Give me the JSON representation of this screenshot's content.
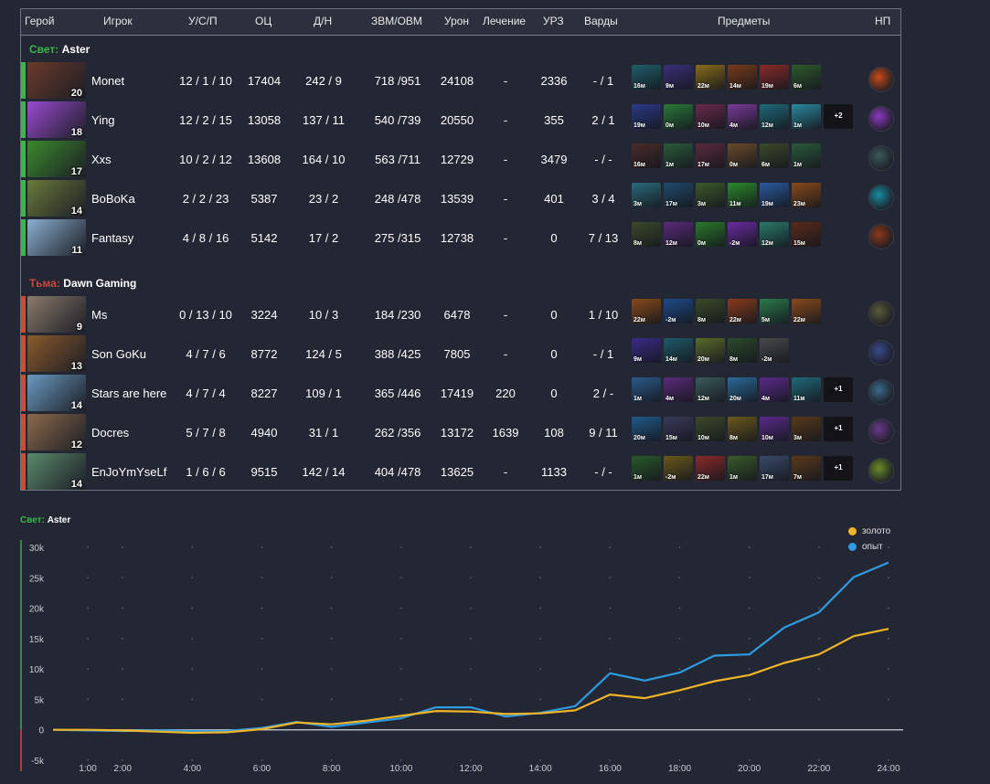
{
  "headers": {
    "hero": "Герой",
    "player": "Игрок",
    "kda": "У/С/П",
    "nw": "ОЦ",
    "lhdn": "Д/Н",
    "gpmxpm": "ЗВМ/ОВМ",
    "damage": "Урон",
    "heal": "Лечение",
    "building": "УРЗ",
    "wards": "Варды",
    "items": "Предметы",
    "np": "НП"
  },
  "radiant": {
    "side": "Свет:",
    "name": "Aster",
    "color": "#3db44d",
    "players": [
      {
        "level": "20",
        "player": "Monet",
        "kda": "12 / 1 / 10",
        "nw": "17404",
        "lhdn": "242 / 9",
        "gpmxpm": "718 /951",
        "damage": "24108",
        "heal": "-",
        "building": "2336",
        "wards": "- / 1",
        "items": [
          {
            "t": "16м",
            "c": "#1f5f6a"
          },
          {
            "t": "9м",
            "c": "#3a2f7a"
          },
          {
            "t": "22м",
            "c": "#8a6a1c"
          },
          {
            "t": "14м",
            "c": "#7a3a18"
          },
          {
            "t": "19м",
            "c": "#8a2a2a"
          },
          {
            "t": "6м",
            "c": "#2d5a2d"
          }
        ],
        "more": "",
        "hero_color": "#6a3a2a",
        "np_color": "#c84a1a"
      },
      {
        "level": "18",
        "player": "Ying",
        "kda": "12 / 2 / 15",
        "nw": "13058",
        "lhdn": "137 / 11",
        "gpmxpm": "540 /739",
        "damage": "20550",
        "heal": "-",
        "building": "355",
        "wards": "2 / 1",
        "items": [
          {
            "t": "19м",
            "c": "#2a3a8a"
          },
          {
            "t": "0м",
            "c": "#2a7a3a"
          },
          {
            "t": "10м",
            "c": "#6a2a4a"
          },
          {
            "t": "4м",
            "c": "#7a3a9a"
          },
          {
            "t": "12м",
            "c": "#1f6a7a"
          },
          {
            "t": "1м",
            "c": "#2a8aa0"
          }
        ],
        "more": "+2",
        "hero_color": "#9a4ad0",
        "np_color": "#8a3ac0"
      },
      {
        "level": "17",
        "player": "Xxs",
        "kda": "10 / 2 / 12",
        "nw": "13608",
        "lhdn": "164 / 10",
        "gpmxpm": "563 /711",
        "damage": "12729",
        "heal": "-",
        "building": "3479",
        "wards": "- / -",
        "items": [
          {
            "t": "16м",
            "c": "#4a2a2a"
          },
          {
            "t": "1м",
            "c": "#2a5a3a"
          },
          {
            "t": "17м",
            "c": "#5a2a3a"
          },
          {
            "t": "0м",
            "c": "#6a4a2a"
          },
          {
            "t": "6м",
            "c": "#3a4a2a"
          },
          {
            "t": "1м",
            "c": "#2a5a3a"
          }
        ],
        "more": "",
        "hero_color": "#3a8a2a",
        "np_color": "#3a5a5a"
      },
      {
        "level": "14",
        "player": "BoBoKa",
        "kda": "2 / 2 / 23",
        "nw": "5387",
        "lhdn": "23 / 2",
        "gpmxpm": "248 /478",
        "damage": "13539",
        "heal": "-",
        "building": "401",
        "wards": "3 / 4",
        "items": [
          {
            "t": "3м",
            "c": "#2a6a7a"
          },
          {
            "t": "17м",
            "c": "#1f4a6a"
          },
          {
            "t": "3м",
            "c": "#3a5a2a"
          },
          {
            "t": "11м",
            "c": "#2a8a2a"
          },
          {
            "t": "19м",
            "c": "#2a5aa0"
          },
          {
            "t": "23м",
            "c": "#8a4a1a"
          }
        ],
        "more": "",
        "hero_color": "#6a7a3a",
        "np_color": "#1a8aa0"
      },
      {
        "level": "11",
        "player": "Fantasy",
        "kda": "4 / 8 / 16",
        "nw": "5142",
        "lhdn": "17 / 2",
        "gpmxpm": "275 /315",
        "damage": "12738",
        "heal": "-",
        "building": "0",
        "wards": "7 / 13",
        "items": [
          {
            "t": "8м",
            "c": "#3a4a2a"
          },
          {
            "t": "12м",
            "c": "#5a2a7a"
          },
          {
            "t": "0м",
            "c": "#2a7a2a"
          },
          {
            "t": "-2м",
            "c": "#6a2aa0"
          },
          {
            "t": "12м",
            "c": "#2a7a6a"
          },
          {
            "t": "15м",
            "c": "#5a2a1a"
          }
        ],
        "more": "",
        "hero_color": "#8ab0d0",
        "np_color": "#8a3a1a"
      }
    ]
  },
  "dire": {
    "side": "Тьма:",
    "name": "Dawn Gaming",
    "color": "#cc4c3a",
    "players": [
      {
        "level": "9",
        "player": "Ms",
        "kda": "0 / 13 / 10",
        "nw": "3224",
        "lhdn": "10 / 3",
        "gpmxpm": "184 /230",
        "damage": "6478",
        "heal": "-",
        "building": "0",
        "wards": "1 / 10",
        "items": [
          {
            "t": "22м",
            "c": "#8a4a1a"
          },
          {
            "t": "-2м",
            "c": "#1f4a8a"
          },
          {
            "t": "8м",
            "c": "#3a4a2a"
          },
          {
            "t": "22м",
            "c": "#8a3a1a"
          },
          {
            "t": "5м",
            "c": "#2a7a4a"
          },
          {
            "t": "22м",
            "c": "#8a4a1a"
          }
        ],
        "more": "",
        "hero_color": "#8a7a6a",
        "np_color": "#5a5a3a"
      },
      {
        "level": "13",
        "player": "Son GoKu",
        "kda": "4 / 7 / 6",
        "nw": "8772",
        "lhdn": "124 / 5",
        "gpmxpm": "388 /425",
        "damage": "7805",
        "heal": "-",
        "building": "0",
        "wards": "- / 1",
        "items": [
          {
            "t": "9м",
            "c": "#3a2a8a"
          },
          {
            "t": "14м",
            "c": "#1f5a6a"
          },
          {
            "t": "20м",
            "c": "#5a6a2a"
          },
          {
            "t": "8м",
            "c": "#2a4a2a"
          },
          {
            "t": "-2м",
            "c": "#4a4a4a"
          }
        ],
        "more": "",
        "hero_color": "#8a5a2a",
        "np_color": "#3a4a8a"
      },
      {
        "level": "14",
        "player": "Stars are here",
        "kda": "4 / 7 / 4",
        "nw": "8227",
        "lhdn": "109 / 1",
        "gpmxpm": "365 /446",
        "damage": "17419",
        "heal": "220",
        "building": "0",
        "wards": "2 / -",
        "items": [
          {
            "t": "1м",
            "c": "#2a5a8a"
          },
          {
            "t": "4м",
            "c": "#5a2a7a"
          },
          {
            "t": "12м",
            "c": "#3a5a5a"
          },
          {
            "t": "20м",
            "c": "#2a6a9a"
          },
          {
            "t": "4м",
            "c": "#5a2a8a"
          },
          {
            "t": "11м",
            "c": "#1f6a7a"
          }
        ],
        "more": "+1",
        "hero_color": "#6a9ac0",
        "np_color": "#3a6a8a"
      },
      {
        "level": "12",
        "player": "Docres",
        "kda": "5 / 7 / 8",
        "nw": "4940",
        "lhdn": "31 / 1",
        "gpmxpm": "262 /356",
        "damage": "13172",
        "heal": "1639",
        "building": "108",
        "wards": "9 / 11",
        "items": [
          {
            "t": "20м",
            "c": "#1f5a8a"
          },
          {
            "t": "15м",
            "c": "#3a3a5a"
          },
          {
            "t": "10м",
            "c": "#3a4a2a"
          },
          {
            "t": "8м",
            "c": "#6a5a1a"
          },
          {
            "t": "10м",
            "c": "#5a2a8a"
          },
          {
            "t": "3м",
            "c": "#5a3a1a"
          }
        ],
        "more": "+1",
        "hero_color": "#8a6a4a",
        "np_color": "#6a3a8a"
      },
      {
        "level": "14",
        "player": "EnJoYmYseLf",
        "kda": "1 / 6 / 6",
        "nw": "9515",
        "lhdn": "142 / 14",
        "gpmxpm": "404 /478",
        "damage": "13625",
        "heal": "-",
        "building": "1133",
        "wards": "- / -",
        "items": [
          {
            "t": "1м",
            "c": "#2a5a2a"
          },
          {
            "t": "-2м",
            "c": "#6a5a1a"
          },
          {
            "t": "22м",
            "c": "#8a2a2a"
          },
          {
            "t": "1м",
            "c": "#3a5a2a"
          },
          {
            "t": "17м",
            "c": "#3a4a6a"
          },
          {
            "t": "7м",
            "c": "#5a3a1a"
          }
        ],
        "more": "+1",
        "hero_color": "#5a8a6a",
        "np_color": "#6a8a2a"
      }
    ]
  },
  "graph": {
    "title_side": "Свет:",
    "title_team": "Aster",
    "legend_gold": "золото",
    "legend_xp": "опыт",
    "gold_color": "#f0b429",
    "xp_color": "#2f9be0"
  },
  "chart_data": {
    "type": "line",
    "title": "",
    "ylim": [
      -5000,
      30000
    ],
    "xlim": [
      0,
      24
    ],
    "yticks": [
      "30k",
      "25k",
      "20k",
      "15k",
      "10k",
      "5k",
      "0",
      "-5k"
    ],
    "ytick_values": [
      30000,
      25000,
      20000,
      15000,
      10000,
      5000,
      0,
      -5000
    ],
    "xticks": [
      "1:00",
      "2:00",
      "4:00",
      "6:00",
      "8:00",
      "10:00",
      "12:00",
      "14:00",
      "16:00",
      "18:00",
      "20:00",
      "22:00",
      "24:00"
    ],
    "xtick_values": [
      1,
      2,
      4,
      6,
      8,
      10,
      12,
      14,
      16,
      18,
      20,
      22,
      24
    ],
    "x": [
      0,
      1,
      2,
      3,
      4,
      5,
      6,
      7,
      8,
      9,
      10,
      11,
      12,
      13,
      14,
      15,
      16,
      17,
      18,
      19,
      20,
      21,
      22,
      23,
      24
    ],
    "series": [
      {
        "name": "золото",
        "values": [
          0,
          0,
          -100,
          -300,
          -500,
          -400,
          100,
          1200,
          900,
          1500,
          2300,
          3100,
          3000,
          2600,
          2700,
          3200,
          5800,
          5200,
          6500,
          8000,
          9000,
          11000,
          12400,
          15400,
          16600
        ]
      },
      {
        "name": "опыт",
        "values": [
          0,
          -100,
          -200,
          -100,
          -200,
          -200,
          300,
          1300,
          500,
          1200,
          1900,
          3700,
          3700,
          2200,
          2800,
          3900,
          9300,
          8100,
          9400,
          12200,
          12400,
          16800,
          19300,
          25100,
          27500
        ]
      }
    ]
  }
}
